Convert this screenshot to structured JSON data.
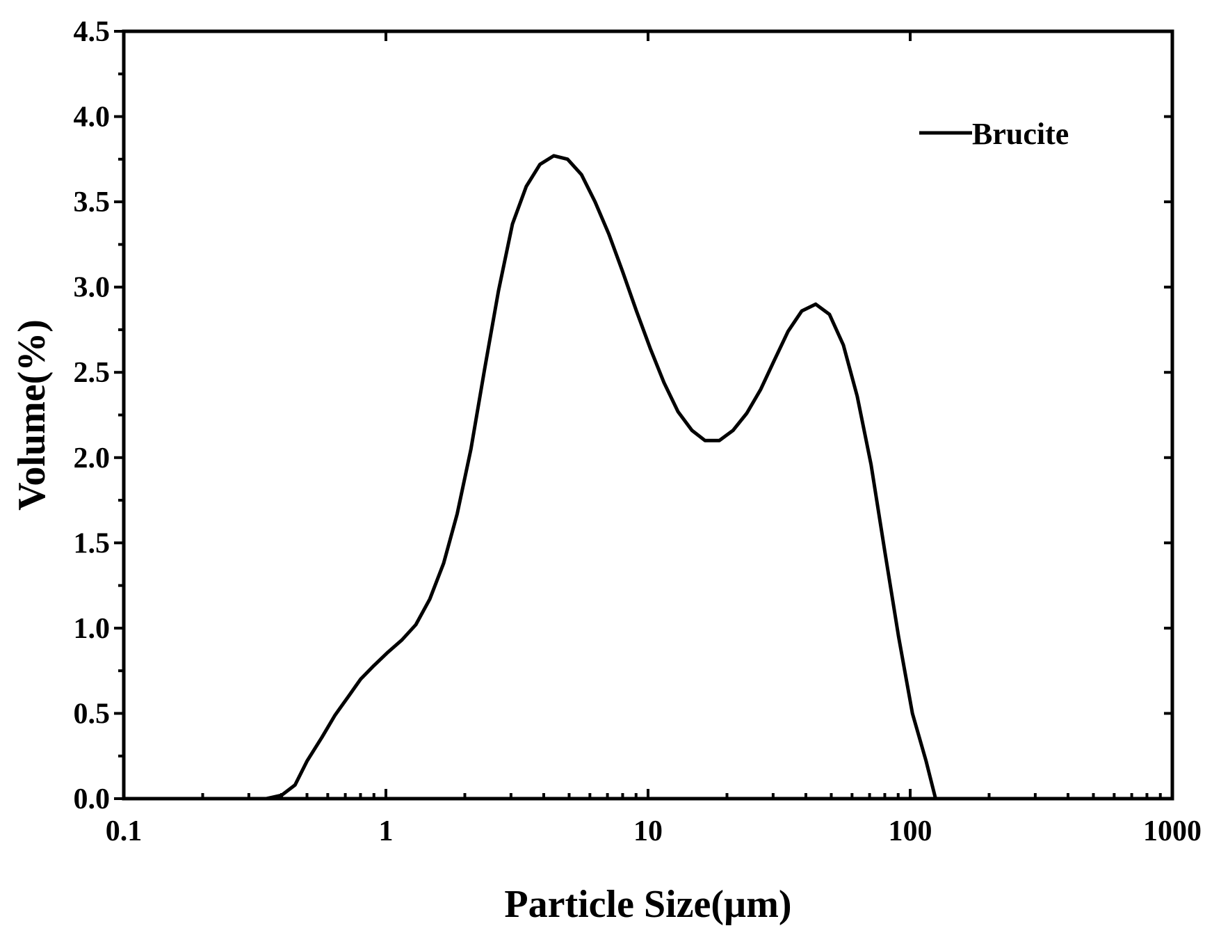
{
  "chart_data": {
    "type": "line",
    "title": "",
    "xlabel": "Particle Size(µm)",
    "ylabel": "Volume(%)",
    "x_scale": "log",
    "xlim": [
      0.1,
      1000
    ],
    "ylim": [
      0,
      4.5
    ],
    "x_ticks": [
      0.1,
      1,
      10,
      100,
      1000
    ],
    "x_tick_labels": [
      "0.1",
      "1",
      "10",
      "100",
      "1000"
    ],
    "y_ticks": [
      0,
      0.5,
      1.0,
      1.5,
      2.0,
      2.5,
      3.0,
      3.5,
      4.0,
      4.5
    ],
    "y_tick_labels": [
      "0.0",
      "0.5",
      "1.0",
      "1.5",
      "2.0",
      "2.5",
      "3.0",
      "3.5",
      "4.0",
      "4.5"
    ],
    "grid": false,
    "legend_position": "top-right",
    "line_color": "#000000",
    "series": [
      {
        "name": "Brucite",
        "x": [
          0.35,
          0.4,
          0.45,
          0.5,
          0.57,
          0.64,
          0.72,
          0.8,
          0.9,
          1.02,
          1.15,
          1.3,
          1.47,
          1.66,
          1.87,
          2.11,
          2.38,
          2.69,
          3.04,
          3.43,
          3.87,
          4.37,
          4.93,
          5.57,
          6.28,
          7.09,
          8.0,
          9.03,
          10.2,
          11.5,
          13.0,
          14.7,
          16.5,
          18.7,
          21.1,
          23.8,
          26.9,
          30.3,
          34.2,
          38.6,
          43.6,
          49.2,
          55.6,
          62.8,
          70.9,
          80.0,
          90.3,
          102,
          115,
          125
        ],
        "y": [
          0.0,
          0.02,
          0.08,
          0.22,
          0.36,
          0.49,
          0.6,
          0.7,
          0.78,
          0.86,
          0.93,
          1.02,
          1.17,
          1.38,
          1.67,
          2.05,
          2.52,
          2.98,
          3.37,
          3.59,
          3.72,
          3.77,
          3.75,
          3.66,
          3.5,
          3.31,
          3.09,
          2.86,
          2.64,
          2.44,
          2.27,
          2.16,
          2.1,
          2.1,
          2.16,
          2.26,
          2.4,
          2.57,
          2.74,
          2.86,
          2.9,
          2.84,
          2.66,
          2.36,
          1.96,
          1.45,
          0.95,
          0.5,
          0.22,
          0.0
        ]
      }
    ]
  }
}
